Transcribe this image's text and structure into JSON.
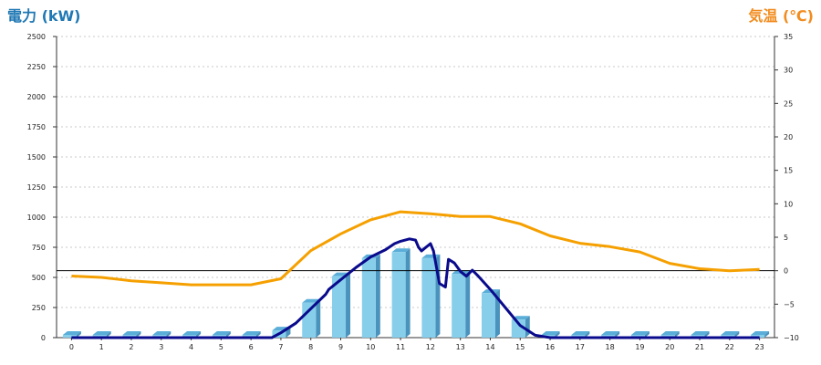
{
  "chart_data": {
    "type": "bar",
    "title": "",
    "left_axis": {
      "label": "電力 (kW)",
      "ylim": [
        0,
        2500
      ],
      "ticks": [
        "0",
        "250",
        "500",
        "750",
        "1000",
        "1250",
        "1500",
        "1750",
        "2000",
        "2250",
        "2500"
      ]
    },
    "right_axis": {
      "label": "気温 (℃)",
      "ylim": [
        -10,
        35
      ],
      "ticks": [
        "35",
        "30",
        "25",
        "20",
        "15",
        "10",
        "5",
        "0",
        "−5",
        "−10"
      ],
      "tick_values": [
        35,
        30,
        25,
        20,
        15,
        10,
        5,
        0,
        -5,
        -10
      ]
    },
    "categories": [
      "0",
      "1",
      "2",
      "3",
      "4",
      "5",
      "6",
      "7",
      "8",
      "9",
      "10",
      "11",
      "12",
      "13",
      "14",
      "15",
      "16",
      "17",
      "18",
      "19",
      "20",
      "21",
      "22",
      "23"
    ],
    "grid": true,
    "reference_line": {
      "axis": "right",
      "value": 0
    },
    "series": [
      {
        "kind": "bar",
        "axis": "left",
        "color": "#87ceeb",
        "values": [
          0,
          0,
          0,
          0,
          0,
          0,
          0,
          60,
          290,
          510,
          660,
          710,
          660,
          530,
          370,
          150,
          0,
          0,
          0,
          0,
          0,
          0,
          0,
          0
        ]
      },
      {
        "kind": "line",
        "axis": "right",
        "color": "#f5a000",
        "x": [
          0,
          1,
          2,
          3,
          4,
          5,
          6,
          7,
          8,
          9,
          10,
          11,
          12,
          13,
          14,
          15,
          16,
          17,
          18,
          19,
          20,
          21,
          22,
          23
        ],
        "values": [
          -0.8,
          -1.0,
          -1.5,
          -1.8,
          -2.1,
          -2.1,
          -2.1,
          -1.2,
          3.0,
          5.5,
          7.6,
          8.8,
          8.5,
          8.1,
          8.1,
          7.0,
          5.2,
          4.1,
          3.6,
          2.8,
          1.1,
          0.3,
          0.0,
          0.2
        ]
      },
      {
        "kind": "line",
        "axis": "left",
        "color": "#0a0a8c",
        "x": [
          0,
          6.7,
          7,
          7.5,
          8,
          8.5,
          8.6,
          9,
          9.5,
          10,
          10.5,
          10.8,
          11,
          11.3,
          11.5,
          11.6,
          11.7,
          11.8,
          12,
          12.1,
          12.3,
          12.5,
          12.6,
          12.8,
          13,
          13.2,
          13.4,
          13.6,
          14,
          14.5,
          15,
          15.5,
          16,
          23
        ],
        "values": [
          0,
          0,
          40,
          120,
          240,
          360,
          400,
          480,
          580,
          670,
          730,
          780,
          800,
          820,
          810,
          750,
          720,
          740,
          780,
          720,
          450,
          420,
          650,
          620,
          550,
          510,
          560,
          510,
          400,
          250,
          100,
          20,
          0,
          0
        ]
      }
    ]
  }
}
